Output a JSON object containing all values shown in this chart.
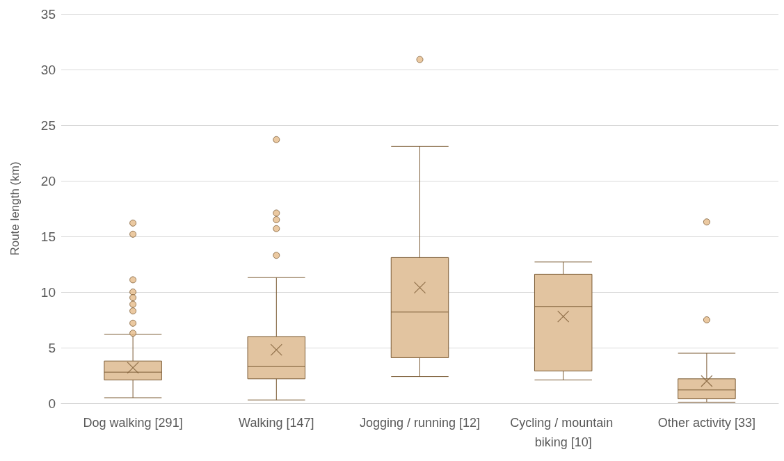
{
  "chart_data": {
    "type": "box",
    "ylabel": "Route length (km)",
    "categories": [
      "Dog walking [291]",
      "Walking [147]",
      "Jogging / running [12]",
      "Cycling / mountain biking [10]",
      "Other activity [33]"
    ],
    "boxes": [
      {
        "low": 0.5,
        "q1": 2.1,
        "median": 2.8,
        "q3": 3.8,
        "high": 6.2,
        "mean": 3.2,
        "outliers": [
          16.2,
          15.2,
          11.1,
          10,
          9.5,
          8.9,
          8.3,
          7.2,
          6.3
        ]
      },
      {
        "low": 0.3,
        "q1": 2.2,
        "median": 3.3,
        "q3": 6,
        "high": 11.3,
        "mean": 4.8,
        "outliers": [
          23.7,
          17.1,
          16.5,
          15.7,
          13.3
        ]
      },
      {
        "low": 2.4,
        "q1": 4.1,
        "median": 8.2,
        "q3": 13.1,
        "high": 23.1,
        "mean": 10.4,
        "outliers": [
          30.9
        ]
      },
      {
        "low": 2.1,
        "q1": 2.9,
        "median": 8.7,
        "q3": 11.6,
        "high": 12.7,
        "mean": 7.8
      },
      {
        "low": 0.1,
        "q1": 0.4,
        "median": 1.2,
        "q3": 2.2,
        "high": 4.5,
        "mean": 2,
        "outliers": [
          16.3,
          7.5
        ]
      }
    ],
    "color": "#e2c4a0",
    "ylim": [
      0,
      35
    ],
    "yticks": [
      0,
      5,
      10,
      15,
      20,
      25,
      30,
      35
    ],
    "grid": "y",
    "marker": "circle",
    "legend": false
  }
}
